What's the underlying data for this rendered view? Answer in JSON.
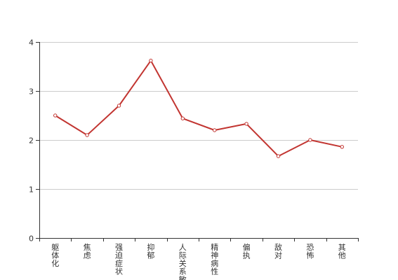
{
  "chart_data": {
    "type": "line",
    "categories": [
      "躯体化",
      "焦虑",
      "强迫症状",
      "抑郁",
      "人际关系敏感",
      "精神病性",
      "偏执",
      "敌对",
      "恐怖",
      "其他"
    ],
    "values": [
      2.5,
      2.1,
      2.7,
      3.62,
      2.44,
      2.2,
      2.33,
      1.67,
      2.0,
      1.86
    ],
    "ylim": [
      0,
      4
    ],
    "yticks": [
      0,
      1,
      2,
      3,
      4
    ],
    "title": "",
    "xlabel": "",
    "ylabel": "",
    "grid": "horizontal",
    "colors": {
      "series": "#c23531",
      "grid": "#cccccc",
      "axis": "#333333"
    }
  }
}
